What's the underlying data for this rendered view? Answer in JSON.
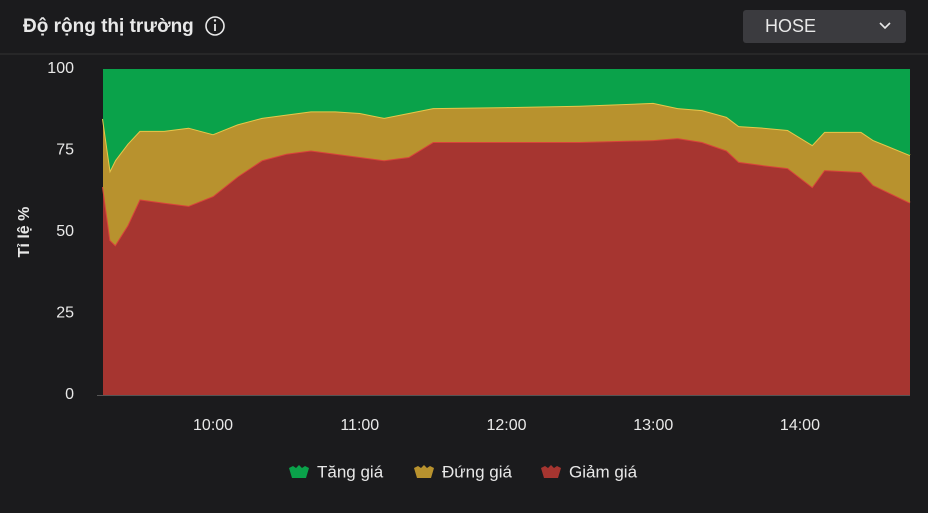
{
  "header": {
    "title": "Độ rộng thị trường",
    "exchange": "HOSE"
  },
  "chart_data": {
    "type": "stacked-area",
    "ylabel": "Tỉ lệ %",
    "x": [
      "09:15",
      "09:18",
      "09:20",
      "09:25",
      "09:30",
      "09:40",
      "09:50",
      "10:00",
      "10:10",
      "10:20",
      "10:30",
      "10:40",
      "10:50",
      "11:00",
      "11:10",
      "11:20",
      "11:30",
      "12:00",
      "12:30",
      "13:00",
      "13:10",
      "13:20",
      "13:30",
      "13:35",
      "13:45",
      "13:55",
      "14:05",
      "14:10",
      "14:25",
      "14:30",
      "14:45"
    ],
    "series": [
      {
        "name": "Tăng giá",
        "color": "#0aa24a",
        "values": [
          15.3,
          31,
          28,
          23,
          19,
          19,
          18,
          20,
          17,
          15,
          14,
          13,
          13,
          13.5,
          15,
          13.5,
          12,
          11.7,
          11.3,
          10.4,
          12,
          12.6,
          14.7,
          17.5,
          18,
          18.7,
          23.3,
          19.3,
          19.3,
          21.8,
          26.4
        ]
      },
      {
        "name": "Đứng giá",
        "color": "#b8922e",
        "values": [
          20.9,
          21.5,
          26,
          25,
          21,
          22,
          24,
          19,
          16,
          13,
          12,
          12,
          13,
          13.5,
          13,
          13.5,
          10.4,
          10.7,
          11.1,
          11.4,
          9.2,
          9.8,
          10.3,
          11,
          11.5,
          11.7,
          12.9,
          11.7,
          12.3,
          13.8,
          14.6
        ]
      },
      {
        "name": "Giảm giá",
        "color": "#a63530",
        "values": [
          63.8,
          47.5,
          46,
          52,
          60,
          59,
          58,
          61,
          67,
          72,
          74,
          75,
          74,
          73,
          72,
          73,
          77.6,
          77.6,
          77.6,
          78.2,
          78.8,
          77.6,
          75,
          71.5,
          70.5,
          69.6,
          63.8,
          69,
          68.4,
          64.4,
          59
        ]
      }
    ],
    "xlim": [
      "09:15",
      "14:45"
    ],
    "xticks": [
      "10:00",
      "11:00",
      "12:00",
      "13:00",
      "14:00"
    ],
    "ylim": [
      0,
      100
    ],
    "yticks": [
      0,
      25,
      50,
      75,
      100
    ],
    "grid": false,
    "legend": "bottom"
  }
}
